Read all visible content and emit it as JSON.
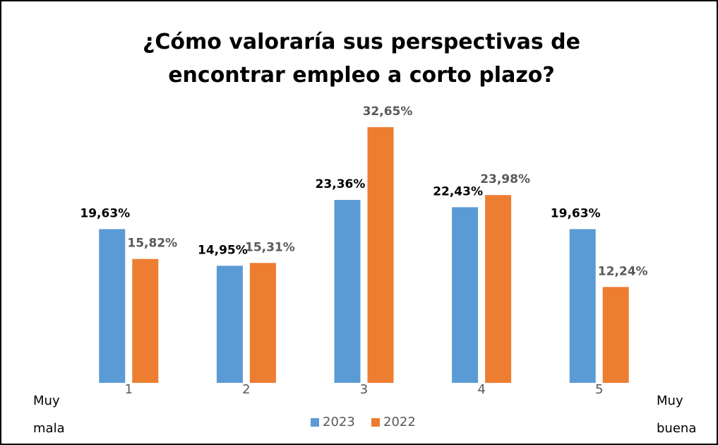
{
  "chart_data": {
    "type": "bar",
    "title": "¿Cómo valoraría sus perspectivas de encontrar empleo a corto plazo?",
    "categories": [
      "1",
      "2",
      "3",
      "4",
      "5"
    ],
    "series": [
      {
        "name": "2023",
        "color": "#5b9bd5",
        "values": [
          19.63,
          14.95,
          23.36,
          22.43,
          19.63
        ],
        "value_labels": [
          "19,63%",
          "14,95%",
          "23,36%",
          "22,43%",
          "19,63%"
        ]
      },
      {
        "name": "2022",
        "color": "#ed7d31",
        "values": [
          15.82,
          15.31,
          32.65,
          23.98,
          12.24
        ],
        "value_labels": [
          "15,82%",
          "15,31%",
          "32,65%",
          "23,98%",
          "12,24%"
        ]
      }
    ],
    "ylim": [
      0,
      35
    ],
    "annotations": [
      [
        "Muy",
        "mala"
      ],
      [
        "Muy",
        "buena"
      ]
    ],
    "legend": "bottom"
  }
}
